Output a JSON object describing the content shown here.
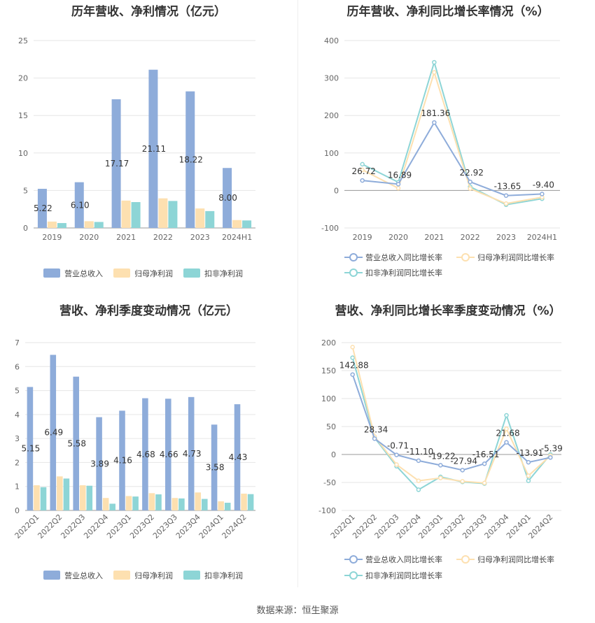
{
  "source": "数据来源：恒生聚源",
  "chart_data": [
    {
      "type": "bar",
      "title": "历年营收、净利情况（亿元）",
      "categories": [
        "2019",
        "2020",
        "2021",
        "2022",
        "2023",
        "2024H1"
      ],
      "ylim": [
        0,
        25
      ],
      "yticks": [
        0,
        5,
        10,
        15,
        20,
        25
      ],
      "series": [
        {
          "name": "营业总收入",
          "color": "#8eacda",
          "values": [
            5.22,
            6.1,
            17.17,
            21.11,
            18.22,
            8.0
          ],
          "labels": [
            "5.22",
            "6.10",
            "17.17",
            "21.11",
            "18.22",
            "8.00"
          ]
        },
        {
          "name": "归母净利润",
          "color": "#fde0b0",
          "values": [
            0.85,
            0.9,
            3.65,
            3.95,
            2.6,
            1.05
          ]
        },
        {
          "name": "扣非净利润",
          "color": "#8dd5d6",
          "values": [
            0.65,
            0.8,
            3.45,
            3.6,
            2.25,
            1.0
          ]
        }
      ]
    },
    {
      "type": "line",
      "title": "历年营收、净利同比增长率情况（%）",
      "categories": [
        "2019",
        "2020",
        "2021",
        "2022",
        "2023",
        "2024H1"
      ],
      "ylim": [
        -100,
        400
      ],
      "yticks": [
        -100,
        0,
        100,
        200,
        300,
        400
      ],
      "series": [
        {
          "name": "营业总收入同比增长率",
          "color": "#8eacda",
          "values": [
            26.72,
            16.89,
            181.36,
            22.92,
            -13.65,
            -9.4
          ],
          "labels": [
            "26.72",
            "16.89",
            "181.36",
            "22.92",
            "-13.65",
            "-9.40"
          ]
        },
        {
          "name": "归母净利润同比增长率",
          "color": "#fde0b0",
          "values": [
            55,
            6,
            315,
            5,
            -35,
            -18
          ]
        },
        {
          "name": "扣非净利润同比增长率",
          "color": "#8dd5d6",
          "values": [
            70,
            22,
            342,
            10,
            -38,
            -22
          ]
        }
      ]
    },
    {
      "type": "bar",
      "title": "营收、净利季度变动情况（亿元）",
      "categories": [
        "2022Q1",
        "2022Q2",
        "2022Q3",
        "2022Q4",
        "2023Q1",
        "2023Q2",
        "2023Q3",
        "2023Q4",
        "2024Q1",
        "2024Q2"
      ],
      "ylim": [
        0,
        7
      ],
      "yticks": [
        0,
        1,
        2,
        3,
        4,
        5,
        6,
        7
      ],
      "series": [
        {
          "name": "营业总收入",
          "color": "#8eacda",
          "values": [
            5.15,
            6.49,
            5.58,
            3.89,
            4.16,
            4.68,
            4.66,
            4.73,
            3.58,
            4.43
          ],
          "labels": [
            "5.15",
            "6.49",
            "5.58",
            "3.89",
            "4.16",
            "4.68",
            "4.66",
            "4.73",
            "3.58",
            "4.43"
          ]
        },
        {
          "name": "归母净利润",
          "color": "#fde0b0",
          "values": [
            1.05,
            1.42,
            1.05,
            0.52,
            0.6,
            0.72,
            0.52,
            0.75,
            0.38,
            0.7
          ]
        },
        {
          "name": "扣非净利润",
          "color": "#8dd5d6",
          "values": [
            0.97,
            1.33,
            1.03,
            0.28,
            0.58,
            0.67,
            0.5,
            0.48,
            0.32,
            0.68
          ]
        }
      ]
    },
    {
      "type": "line",
      "title": "营收、净利同比增长率季度变动情况（%）",
      "categories": [
        "2022Q1",
        "2022Q2",
        "2022Q3",
        "2022Q4",
        "2023Q1",
        "2023Q2",
        "2023Q3",
        "2023Q4",
        "2024Q1",
        "2024Q2"
      ],
      "ylim": [
        -100,
        200
      ],
      "yticks": [
        -100,
        -50,
        0,
        50,
        100,
        150,
        200
      ],
      "series": [
        {
          "name": "营业总收入同比增长率",
          "color": "#8eacda",
          "values": [
            142.88,
            28.34,
            -0.71,
            -11.1,
            -19.22,
            -27.94,
            -16.51,
            21.68,
            -13.91,
            -5.39
          ],
          "labels": [
            "142.88",
            "28.34",
            "-0.71",
            "-11.10",
            "-19.22",
            "-27.94",
            "-16.51",
            "21.68",
            "-13.91",
            "-5.39"
          ]
        },
        {
          "name": "归母净利润同比增长率",
          "color": "#fde0b0",
          "values": [
            192,
            32,
            -18,
            -47,
            -42,
            -48,
            -51,
            46,
            -38,
            -2
          ]
        },
        {
          "name": "扣非净利润同比增长率",
          "color": "#8dd5d6",
          "values": [
            173,
            30,
            -21,
            -63,
            -40,
            -49,
            -52,
            70,
            -47,
            0
          ]
        }
      ]
    }
  ]
}
